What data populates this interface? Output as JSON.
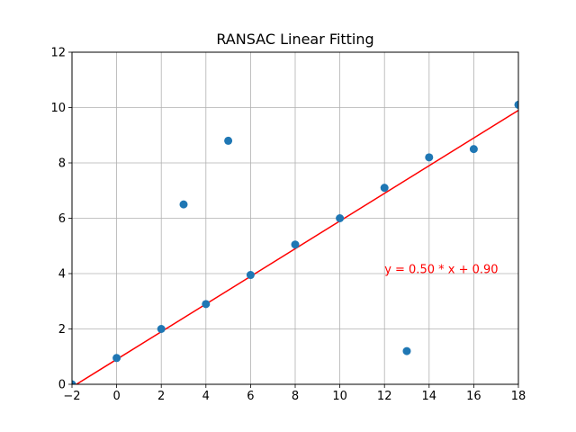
{
  "chart_data": {
    "type": "scatter",
    "title": "RANSAC Linear Fitting",
    "xlabel": "",
    "ylabel": "",
    "xlim": [
      -2,
      18
    ],
    "ylim": [
      0,
      12
    ],
    "xticks": [
      -2,
      0,
      2,
      4,
      6,
      8,
      10,
      12,
      14,
      16,
      18
    ],
    "yticks": [
      0,
      2,
      4,
      6,
      8,
      10,
      12
    ],
    "grid": true,
    "points": {
      "x": [
        -2,
        0,
        2,
        3,
        4,
        5,
        6,
        8,
        10,
        12,
        13,
        14,
        16,
        18
      ],
      "y": [
        0.0,
        0.95,
        2.0,
        6.5,
        2.9,
        8.8,
        3.95,
        5.05,
        6.0,
        7.1,
        1.2,
        8.2,
        8.5,
        10.1
      ],
      "color": "#1f77b4"
    },
    "fit_line": {
      "slope": 0.5,
      "intercept": 0.9,
      "x_range": [
        -2,
        18
      ],
      "color": "#ff0000"
    },
    "annotation": {
      "text": "y = 0.50 * x + 0.90",
      "x": 12,
      "y": 4.0,
      "color": "#ff0000"
    }
  }
}
